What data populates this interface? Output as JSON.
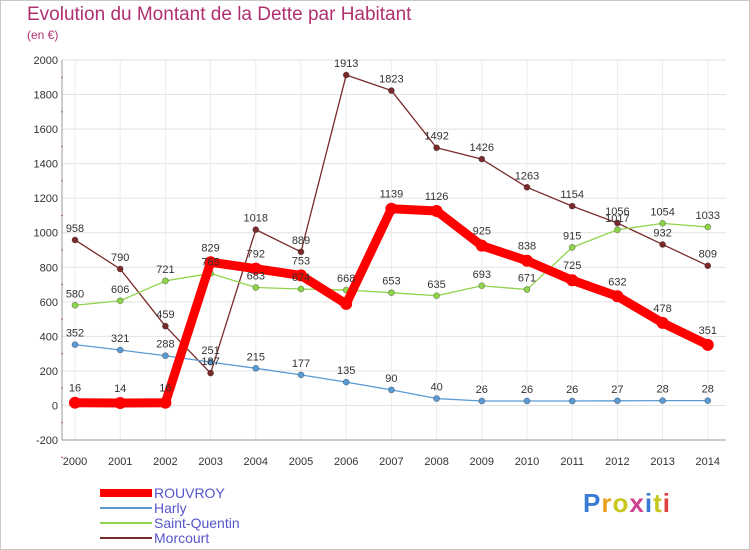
{
  "title": "Evolution du Montant de la Dette par Habitant",
  "subtitle": "(en €)",
  "logo": {
    "text": "Proxiti",
    "letter_colors": [
      "#3a7bd5",
      "#e8a020",
      "#c8c820",
      "#d04090",
      "#3a7bd5",
      "#c8c820",
      "#e04040"
    ]
  },
  "chart_data": {
    "type": "line",
    "categories": [
      "2000",
      "2001",
      "2002",
      "2003",
      "2004",
      "2005",
      "2006",
      "2007",
      "2008",
      "2009",
      "2010",
      "2011",
      "2012",
      "2013",
      "2014"
    ],
    "ylim": [
      -200,
      2000
    ],
    "yticks": [
      -200,
      0,
      200,
      400,
      600,
      800,
      1000,
      1200,
      1400,
      1600,
      1800,
      2000
    ],
    "grid": true,
    "legend_position": "bottom-left",
    "series": [
      {
        "name": "ROUVROY",
        "color": "#ff0000",
        "values": [
          16,
          14,
          16,
          829,
          792,
          753,
          588,
          1139,
          1126,
          925,
          838,
          725,
          632,
          478,
          351
        ],
        "labels": [
          "16",
          "14",
          "16",
          "829",
          "792",
          "753",
          "",
          "1139",
          "1126",
          "925",
          "838",
          "725",
          "632",
          "478",
          "351"
        ]
      },
      {
        "name": "Harly",
        "color": "#5b9bd5",
        "values": [
          352,
          321,
          288,
          251,
          215,
          177,
          135,
          90,
          40,
          26,
          26,
          26,
          27,
          28,
          28
        ],
        "labels": [
          "352",
          "321",
          "288",
          "251",
          "215",
          "177",
          "135",
          "90",
          "40",
          "26",
          "26",
          "26",
          "27",
          "28",
          "28"
        ]
      },
      {
        "name": "Saint-Quentin",
        "color": "#8fd44a",
        "values": [
          580,
          606,
          721,
          765,
          683,
          674,
          668,
          653,
          635,
          693,
          671,
          915,
          1017,
          1054,
          1033
        ],
        "labels": [
          "580",
          "606",
          "721",
          "765",
          "683",
          "674",
          "668",
          "653",
          "635",
          "693",
          "671",
          "915",
          "1017",
          "1054",
          "1033"
        ]
      },
      {
        "name": "Morcourt",
        "color": "#7a2a2a",
        "values": [
          958,
          790,
          459,
          187,
          1018,
          889,
          1913,
          1823,
          1492,
          1426,
          1263,
          1154,
          1056,
          932,
          809
        ],
        "labels": [
          "958",
          "790",
          "459",
          "187",
          "1018",
          "889",
          "1913",
          "1823",
          "1492",
          "1426",
          "1263",
          "1154",
          "1056",
          "932",
          "809"
        ]
      }
    ]
  }
}
